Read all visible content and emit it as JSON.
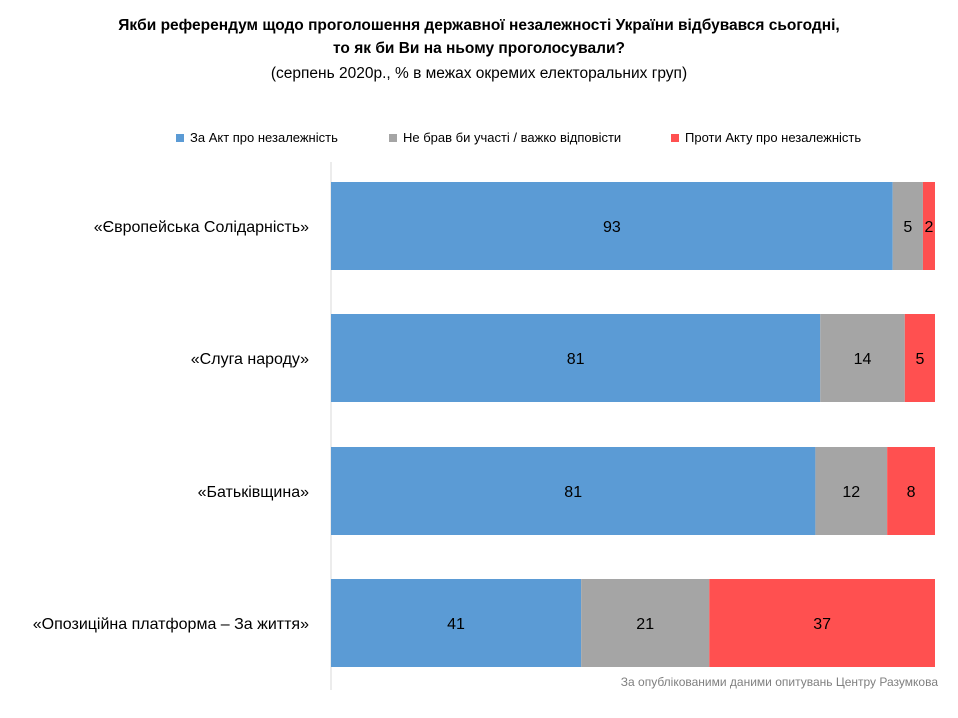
{
  "title_line1": "Якби референдум щодо проголошення державної незалежності України відбувався сьогодні,",
  "title_line2": "то як би Ви на ньому проголосували?",
  "subtitle": "(серпень 2020р., % в межах окремих електоральних груп)",
  "source": "За опублікованими  даними опитувань Центру  Разумкова",
  "chart_data": {
    "type": "bar",
    "orientation": "horizontal",
    "stacked": true,
    "categories": [
      "«Європейська Солідарність»",
      "«Слуга народу»",
      "«Батьківщина»",
      "«Опозиційна платформа – За життя»"
    ],
    "series": [
      {
        "name": "За Акт про  незалежність",
        "color": "#5b9bd5",
        "values": [
          93,
          81,
          81,
          41
        ]
      },
      {
        "name": "Не брав би участі / важко відповісти",
        "color": "#a5a5a5",
        "values": [
          5,
          14,
          12,
          21
        ]
      },
      {
        "name": "Проти Акту про  незалежність",
        "color": "#ff5050",
        "values": [
          2,
          5,
          8,
          37
        ]
      }
    ],
    "legend_position": "top",
    "grid": false
  }
}
